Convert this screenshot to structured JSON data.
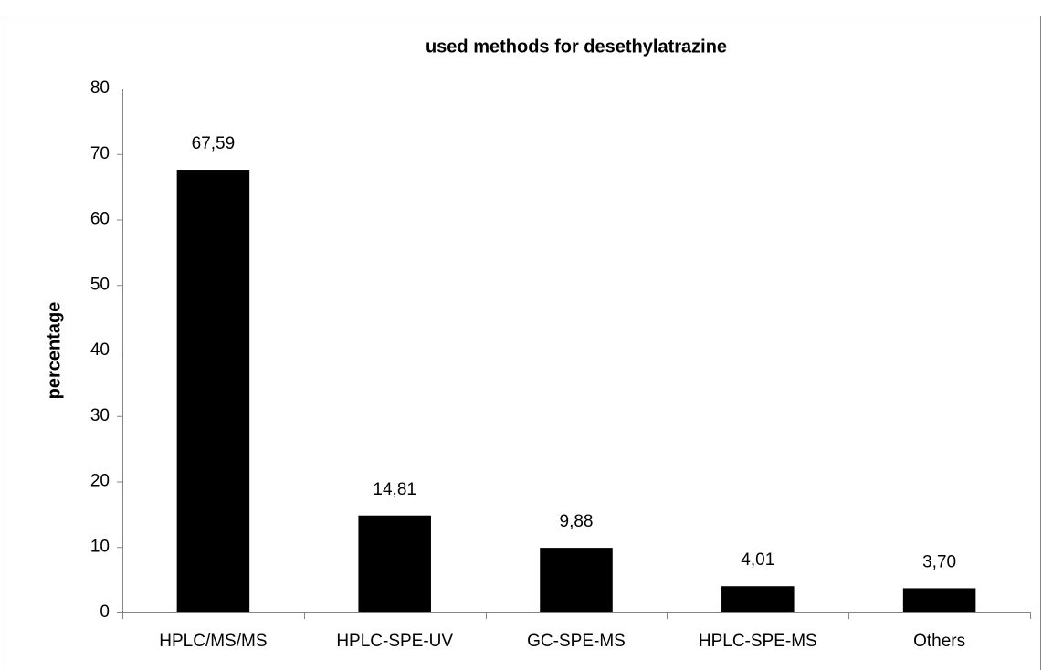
{
  "chart_data": {
    "type": "bar",
    "title": "used methods for desethylatrazine",
    "ylabel": "percentage",
    "categories": [
      "HPLC/MS/MS",
      "HPLC-SPE-UV",
      "GC-SPE-MS",
      "HPLC-SPE-MS",
      "Others"
    ],
    "values": [
      67.59,
      14.81,
      9.88,
      4.01,
      3.7
    ],
    "value_labels": [
      "67,59",
      "14,81",
      "9,88",
      "4,01",
      "3,70"
    ],
    "color": "#000000",
    "ylim": [
      0,
      80
    ],
    "yticks": [
      0,
      10,
      20,
      30,
      40,
      50,
      60,
      70,
      80
    ],
    "grid": false
  }
}
